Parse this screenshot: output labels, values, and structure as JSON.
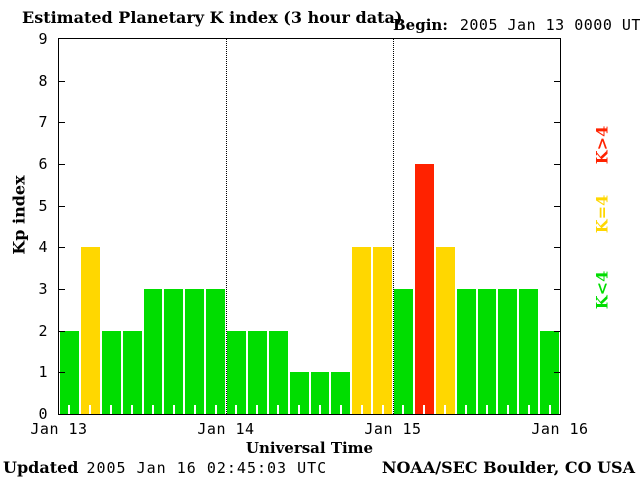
{
  "title": "Estimated Planetary K index (3 hour data)",
  "begin": {
    "label": "Begin:",
    "value": "2005 Jan 13 0000 UTC"
  },
  "y_axis": {
    "label": "Kp index",
    "ticks": [
      "9",
      "8",
      "7",
      "6",
      "5",
      "4",
      "3",
      "2",
      "1",
      "0"
    ]
  },
  "x_axis": {
    "label": "Universal Time",
    "ticks": [
      "Jan 13",
      "Jan 14",
      "Jan 15",
      "Jan 16"
    ]
  },
  "legend": [
    {
      "label": "K>4",
      "color": "#FF2200"
    },
    {
      "label": "K=4",
      "color": "#FFD700"
    },
    {
      "label": "K<4",
      "color": "#00DD00"
    }
  ],
  "footer": {
    "updated_label": "Updated",
    "updated_value": "2005 Jan 16 02:45:03 UTC",
    "source": "NOAA/SEC Boulder, CO USA"
  },
  "chart_data": {
    "type": "bar",
    "title": "Estimated Planetary K index (3 hour data)",
    "xlabel": "Universal Time",
    "ylabel": "Kp index",
    "ylim": [
      0,
      9
    ],
    "bin_hours": 3,
    "begin": "2005 Jan 13 0000 UTC",
    "day_labels": [
      "Jan 13",
      "Jan 14",
      "Jan 15",
      "Jan 16"
    ],
    "values": [
      2,
      4,
      2,
      2,
      3,
      3,
      3,
      3,
      2,
      2,
      2,
      1,
      1,
      1,
      4,
      4,
      3,
      6,
      4,
      3,
      3,
      3,
      3,
      2
    ],
    "colors": {
      "k_below_4": "#00DD00",
      "k_equal_4": "#FFD700",
      "k_above_4": "#FF2200"
    },
    "grid": "dotted vertical lines at day boundaries",
    "legend_position": "right",
    "legend_entries": [
      "K>4",
      "K=4",
      "K<4"
    ]
  }
}
